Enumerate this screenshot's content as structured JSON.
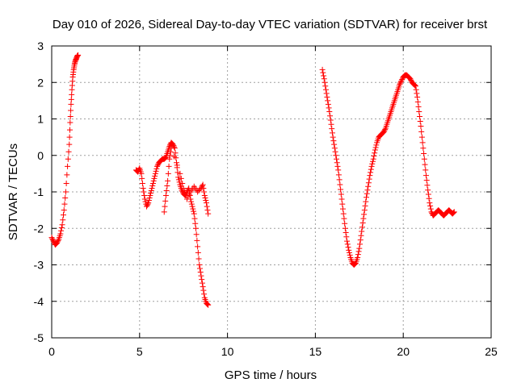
{
  "chart_data": {
    "type": "scatter",
    "title": "Day 010 of 2026, Sidereal Day-to-day VTEC variation (SDTVAR) for receiver brst",
    "xlabel": "GPS time / hours",
    "ylabel": "SDTVAR / TECUs",
    "xlim": [
      0,
      25
    ],
    "ylim": [
      -5,
      3
    ],
    "xticks": [
      "0",
      "5",
      "10",
      "15",
      "20",
      "25"
    ],
    "yticks": [
      "-5",
      "-4",
      "-3",
      "-2",
      "-1",
      "0",
      "1",
      "2",
      "3"
    ],
    "grid": true,
    "marker": "plus",
    "color": "#ff0000",
    "series": [
      {
        "name": "segment-1",
        "x": [
          0.0,
          0.1,
          0.2,
          0.3,
          0.4,
          0.5,
          0.6,
          0.7,
          0.8,
          0.9,
          1.0,
          1.05,
          1.1,
          1.15,
          1.2,
          1.25,
          1.3,
          1.35,
          1.4,
          1.45,
          1.5
        ],
        "y": [
          -2.25,
          -2.35,
          -2.45,
          -2.4,
          -2.3,
          -2.15,
          -1.9,
          -1.5,
          -1.0,
          -0.3,
          0.3,
          0.9,
          1.4,
          1.8,
          2.15,
          2.35,
          2.5,
          2.6,
          2.65,
          2.72,
          2.75
        ]
      },
      {
        "name": "segment-2",
        "x": [
          4.8,
          4.9,
          5.0,
          5.1,
          5.2,
          5.3,
          5.4,
          5.5,
          5.6,
          5.7,
          5.8,
          5.9,
          6.0,
          6.1,
          6.2,
          6.3,
          6.4,
          6.5,
          6.6,
          6.7,
          6.8,
          6.9,
          7.0,
          7.1,
          7.2,
          7.3,
          7.4,
          7.5,
          7.6,
          7.7,
          7.8,
          7.9,
          8.0,
          8.1,
          8.2,
          8.3,
          8.4,
          8.5,
          8.6,
          8.7,
          8.8,
          8.9
        ],
        "y": [
          -0.4,
          -0.45,
          -0.35,
          -0.5,
          -0.9,
          -1.2,
          -1.4,
          -1.3,
          -1.1,
          -0.9,
          -0.7,
          -0.5,
          -0.3,
          -0.2,
          -0.15,
          -0.1,
          -0.1,
          -0.05,
          0.1,
          0.25,
          0.35,
          0.3,
          0.2,
          -0.2,
          -0.6,
          -0.8,
          -0.95,
          -1.05,
          -1.1,
          -1.0,
          -0.9,
          -1.2,
          -1.4,
          -1.6,
          -2.0,
          -2.5,
          -3.0,
          -3.3,
          -3.6,
          -3.9,
          -4.05,
          -4.1
        ]
      },
      {
        "name": "segment-2-branch",
        "x": [
          6.4,
          6.5,
          6.6,
          6.7,
          6.8,
          7.3,
          7.5,
          7.7,
          7.9,
          8.1,
          8.3,
          8.5,
          8.6,
          8.7,
          8.8,
          8.9
        ],
        "y": [
          -1.55,
          -1.1,
          -0.7,
          -0.1,
          0.2,
          -0.5,
          -0.9,
          -1.2,
          -1.0,
          -0.85,
          -1.0,
          -0.9,
          -0.8,
          -1.1,
          -1.3,
          -1.6
        ]
      },
      {
        "name": "segment-3",
        "x": [
          15.4,
          15.5,
          15.6,
          15.7,
          15.8,
          15.9,
          16.0,
          16.1,
          16.2,
          16.3,
          16.4,
          16.5,
          16.6,
          16.7,
          16.8,
          16.9,
          17.0,
          17.1,
          17.2,
          17.3,
          17.4,
          17.5,
          17.6,
          17.7,
          17.8,
          17.9,
          18.0,
          18.1,
          18.2,
          18.3,
          18.4,
          18.5,
          18.6,
          18.7,
          18.8,
          18.9,
          19.0,
          19.1,
          19.2,
          19.3,
          19.4,
          19.5,
          19.6,
          19.7,
          19.8,
          19.9,
          20.0,
          20.1,
          20.2,
          20.3,
          20.4,
          20.5,
          20.6,
          20.7,
          20.8,
          20.9,
          21.0,
          21.1,
          21.2,
          21.3,
          21.4,
          21.5,
          21.6,
          21.7,
          21.8,
          21.9,
          22.0,
          22.1,
          22.2,
          22.3,
          22.4,
          22.5,
          22.6,
          22.7,
          22.8,
          22.9
        ],
        "y": [
          2.35,
          2.1,
          1.8,
          1.5,
          1.2,
          0.85,
          0.5,
          0.2,
          -0.1,
          -0.4,
          -0.8,
          -1.2,
          -1.6,
          -2.0,
          -2.35,
          -2.6,
          -2.8,
          -2.95,
          -3.0,
          -2.95,
          -2.8,
          -2.55,
          -2.2,
          -1.85,
          -1.5,
          -1.15,
          -0.85,
          -0.55,
          -0.3,
          -0.1,
          0.15,
          0.35,
          0.5,
          0.55,
          0.6,
          0.65,
          0.75,
          0.9,
          1.05,
          1.2,
          1.35,
          1.5,
          1.65,
          1.8,
          1.95,
          2.05,
          2.15,
          2.2,
          2.2,
          2.15,
          2.1,
          2.0,
          1.95,
          1.9,
          1.6,
          1.2,
          0.8,
          0.35,
          -0.1,
          -0.55,
          -0.95,
          -1.3,
          -1.55,
          -1.65,
          -1.6,
          -1.55,
          -1.5,
          -1.55,
          -1.6,
          -1.65,
          -1.6,
          -1.55,
          -1.5,
          -1.55,
          -1.6,
          -1.55
        ]
      }
    ]
  }
}
